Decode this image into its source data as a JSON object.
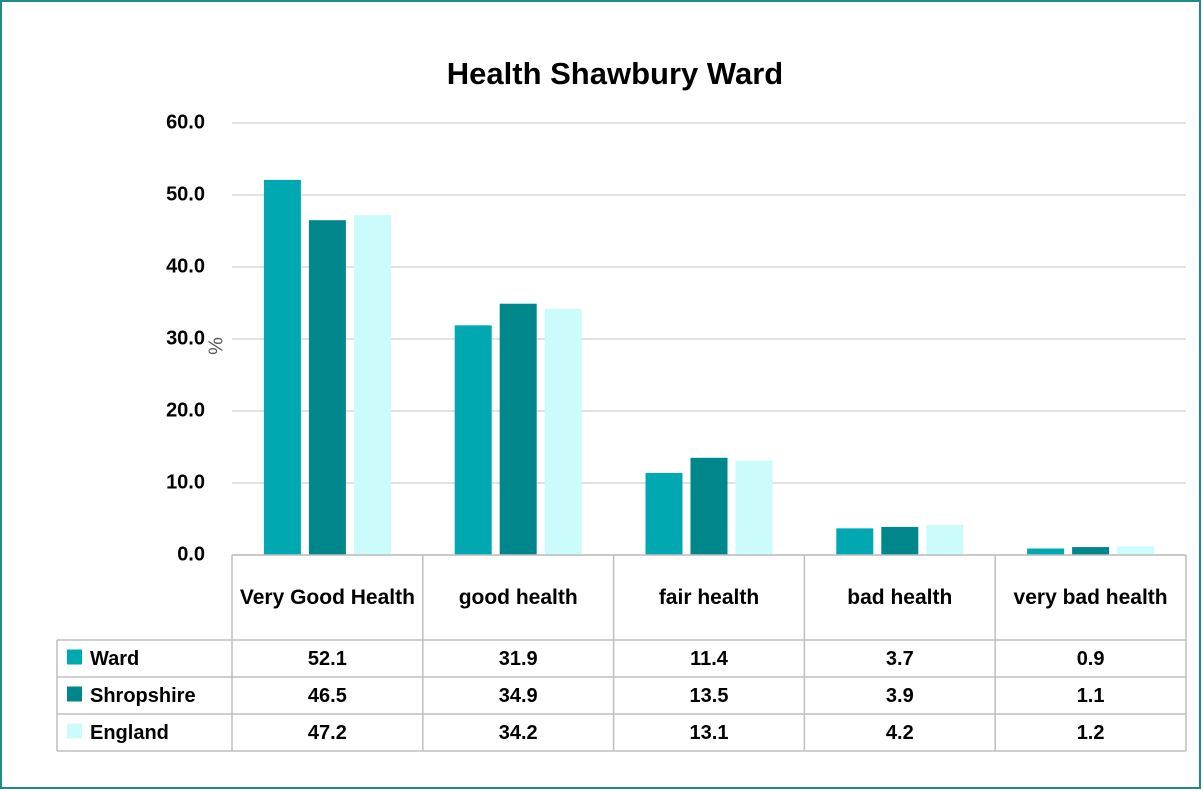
{
  "chart_data": {
    "type": "bar",
    "title": "Health Shawbury Ward",
    "y_label": "%",
    "categories": [
      "Very Good Health",
      "good health",
      "fair health",
      "bad health",
      "very bad health"
    ],
    "series": [
      {
        "name": "Ward",
        "color": "#00a8b1",
        "values": [
          52.1,
          31.9,
          11.4,
          3.7,
          0.9
        ]
      },
      {
        "name": "Shropshire",
        "color": "#00878b",
        "values": [
          46.5,
          34.9,
          13.5,
          3.9,
          1.1
        ]
      },
      {
        "name": "England",
        "color": "#ccfbfc",
        "values": [
          47.2,
          34.2,
          13.1,
          4.2,
          1.2
        ]
      }
    ],
    "ylim": [
      0,
      60
    ],
    "yticks": [
      {
        "value": 0,
        "label": "0.0"
      },
      {
        "value": 10,
        "label": "10.0"
      },
      {
        "value": 20,
        "label": "20.0"
      },
      {
        "value": 30,
        "label": "30.0"
      },
      {
        "value": 40,
        "label": "40.0"
      },
      {
        "value": 50,
        "label": "50.0"
      },
      {
        "value": 60,
        "label": "60.0"
      }
    ],
    "grid": true
  }
}
